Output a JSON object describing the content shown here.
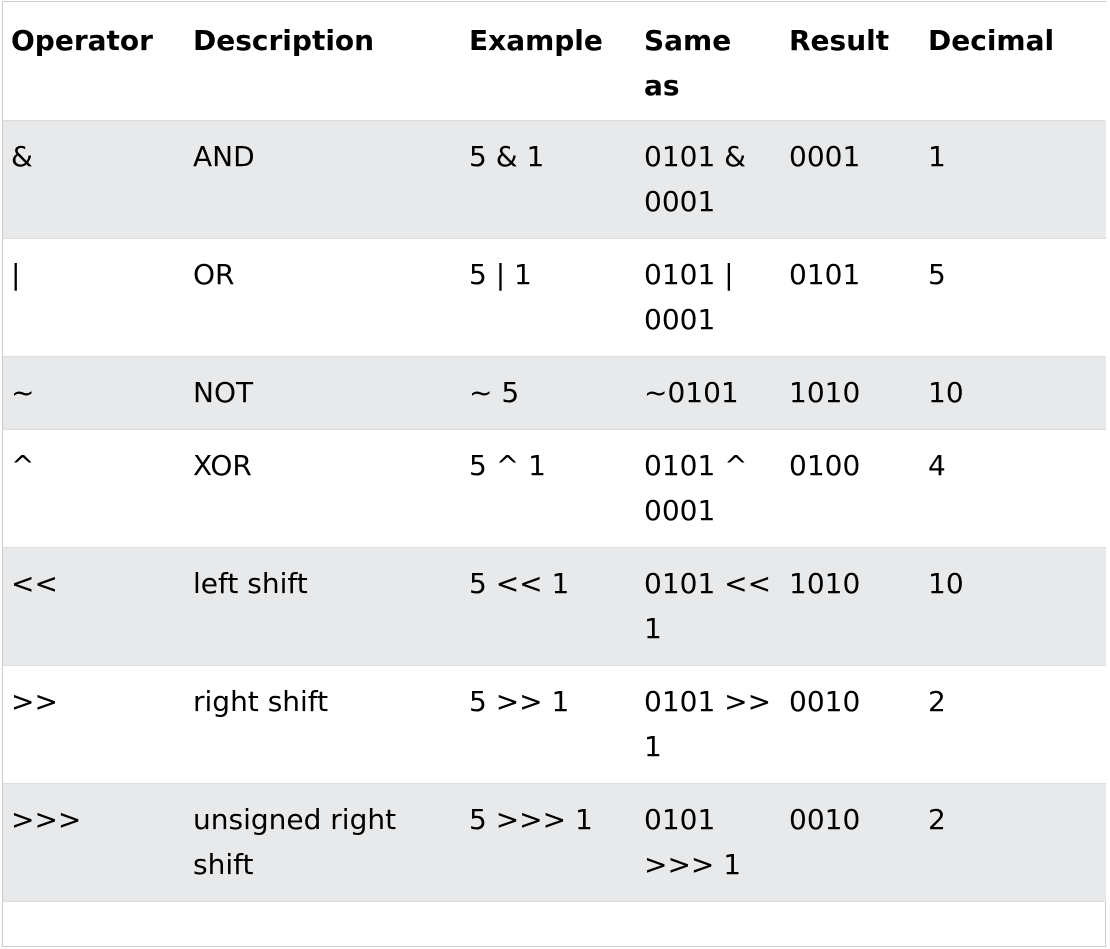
{
  "table": {
    "headers": [
      "Operator",
      "Description",
      "Example",
      "Same as",
      "Result",
      "Decimal"
    ],
    "rows": [
      {
        "operator": "&",
        "description": "AND",
        "example": "5 & 1",
        "same_as": "0101 & 0001",
        "result": "0001",
        "decimal": "1"
      },
      {
        "operator": "|",
        "description": "OR",
        "example": "5 | 1",
        "same_as": "0101 | 0001",
        "result": "0101",
        "decimal": "5"
      },
      {
        "operator": "~",
        "description": "NOT",
        "example": "~ 5",
        "same_as": "~0101",
        "result": "1010",
        "decimal": "10"
      },
      {
        "operator": "^",
        "description": "XOR",
        "example": "5 ^ 1",
        "same_as": "0101 ^ 0001",
        "result": "0100",
        "decimal": "4"
      },
      {
        "operator": "<<",
        "description": "left shift",
        "example": "5 << 1",
        "same_as": "0101 << 1",
        "result": "1010",
        "decimal": "10"
      },
      {
        "operator": ">>",
        "description": "right shift",
        "example": "5 >> 1",
        "same_as": "0101 >> 1",
        "result": "0010",
        "decimal": "2"
      },
      {
        "operator": ">>>",
        "description": "unsigned right shift",
        "example": "5 >>> 1",
        "same_as": "0101 >>> 1",
        "result": "0010",
        "decimal": "2"
      }
    ]
  }
}
